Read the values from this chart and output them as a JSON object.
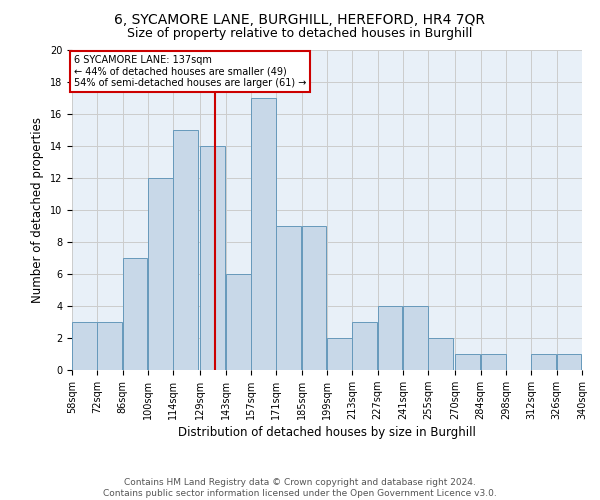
{
  "title_line1": "6, SYCAMORE LANE, BURGHILL, HEREFORD, HR4 7QR",
  "title_line2": "Size of property relative to detached houses in Burghill",
  "xlabel": "Distribution of detached houses by size in Burghill",
  "ylabel": "Number of detached properties",
  "bins": [
    58,
    72,
    86,
    100,
    114,
    129,
    143,
    157,
    171,
    185,
    199,
    213,
    227,
    241,
    255,
    270,
    284,
    298,
    312,
    326,
    340
  ],
  "counts": [
    3,
    3,
    7,
    12,
    15,
    14,
    6,
    17,
    9,
    9,
    2,
    3,
    4,
    4,
    2,
    1,
    1,
    0,
    1,
    1
  ],
  "bar_color": "#c8d8e8",
  "bar_edge_color": "#6699bb",
  "vline_x": 137,
  "vline_color": "#cc0000",
  "annotation_text": "6 SYCAMORE LANE: 137sqm\n← 44% of detached houses are smaller (49)\n54% of semi-detached houses are larger (61) →",
  "annotation_box_color": "#ffffff",
  "annotation_box_edge_color": "#cc0000",
  "ylim": [
    0,
    20
  ],
  "yticks": [
    0,
    2,
    4,
    6,
    8,
    10,
    12,
    14,
    16,
    18,
    20
  ],
  "tick_labels": [
    "58sqm",
    "72sqm",
    "86sqm",
    "100sqm",
    "114sqm",
    "129sqm",
    "143sqm",
    "157sqm",
    "171sqm",
    "185sqm",
    "199sqm",
    "213sqm",
    "227sqm",
    "241sqm",
    "255sqm",
    "270sqm",
    "284sqm",
    "298sqm",
    "312sqm",
    "326sqm",
    "340sqm"
  ],
  "grid_color": "#cccccc",
  "bg_color": "#e8f0f8",
  "footer_text": "Contains HM Land Registry data © Crown copyright and database right 2024.\nContains public sector information licensed under the Open Government Licence v3.0.",
  "title_fontsize": 10,
  "subtitle_fontsize": 9,
  "label_fontsize": 8.5,
  "tick_fontsize": 7,
  "footer_fontsize": 6.5
}
